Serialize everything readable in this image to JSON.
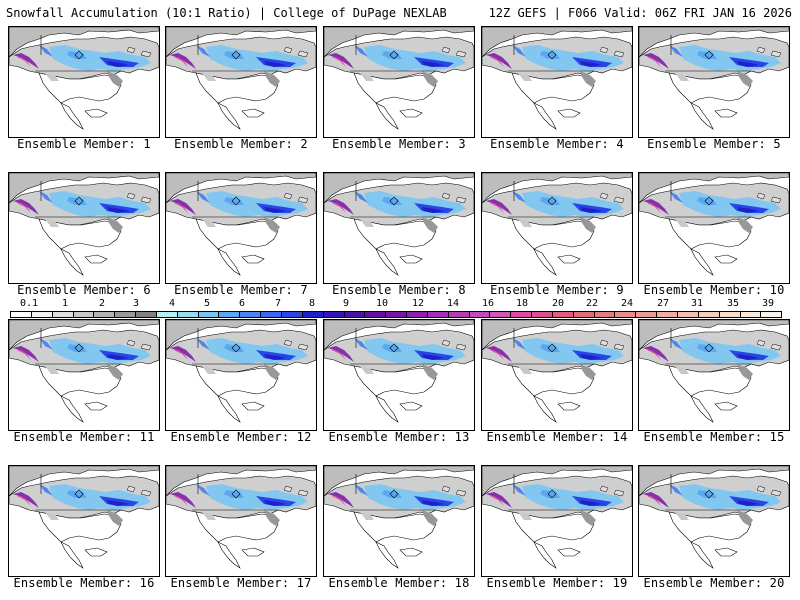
{
  "header": {
    "left_title": "Snowfall Accumulation (10:1 Ratio) | College of DuPage NEXLAB",
    "right_title": "12Z GEFS | F066 Valid: 06Z FRI JAN 16 2026"
  },
  "legend": {
    "labels": [
      "0.1",
      "1",
      "2",
      "3",
      "4",
      "5",
      "6",
      "7",
      "8",
      "9",
      "10",
      "12",
      "14",
      "16",
      "18",
      "20",
      "22",
      "24",
      "27",
      "31",
      "35",
      "39"
    ],
    "colors": [
      "#ffffff",
      "#f2f2f2",
      "#e0e0e0",
      "#c8c8c8",
      "#b2b2b2",
      "#989898",
      "#808080",
      "#b8f0f0",
      "#92dcf2",
      "#74c6f4",
      "#5ca8f0",
      "#4a8af0",
      "#3868ee",
      "#2846e6",
      "#2020c8",
      "#3414b4",
      "#4a10a8",
      "#6010a0",
      "#7a14a4",
      "#8e20ac",
      "#a230b4",
      "#b43cb8",
      "#c44abc",
      "#d258b8",
      "#dc4ca0",
      "#e0508c",
      "#e05c80",
      "#e06c7c",
      "#e47c84",
      "#e88c8c",
      "#ec9c98",
      "#f0aca4",
      "#f2bcb2",
      "#f6ccc0",
      "#f8dccc",
      "#fae8da",
      "#fcf2e6"
    ]
  },
  "members": [
    {
      "label": "Ensemble Member: 1"
    },
    {
      "label": "Ensemble Member: 2"
    },
    {
      "label": "Ensemble Member: 3"
    },
    {
      "label": "Ensemble Member: 4"
    },
    {
      "label": "Ensemble Member: 5"
    },
    {
      "label": "Ensemble Member: 6"
    },
    {
      "label": "Ensemble Member: 7"
    },
    {
      "label": "Ensemble Member: 8"
    },
    {
      "label": "Ensemble Member: 9"
    },
    {
      "label": "Ensemble Member: 10"
    },
    {
      "label": "Ensemble Member: 11"
    },
    {
      "label": "Ensemble Member: 12"
    },
    {
      "label": "Ensemble Member: 13"
    },
    {
      "label": "Ensemble Member: 14"
    },
    {
      "label": "Ensemble Member: 15"
    },
    {
      "label": "Ensemble Member: 16"
    },
    {
      "label": "Ensemble Member: 17"
    },
    {
      "label": "Ensemble Member: 18"
    },
    {
      "label": "Ensemble Member: 19"
    },
    {
      "label": "Ensemble Member: 20"
    }
  ]
}
